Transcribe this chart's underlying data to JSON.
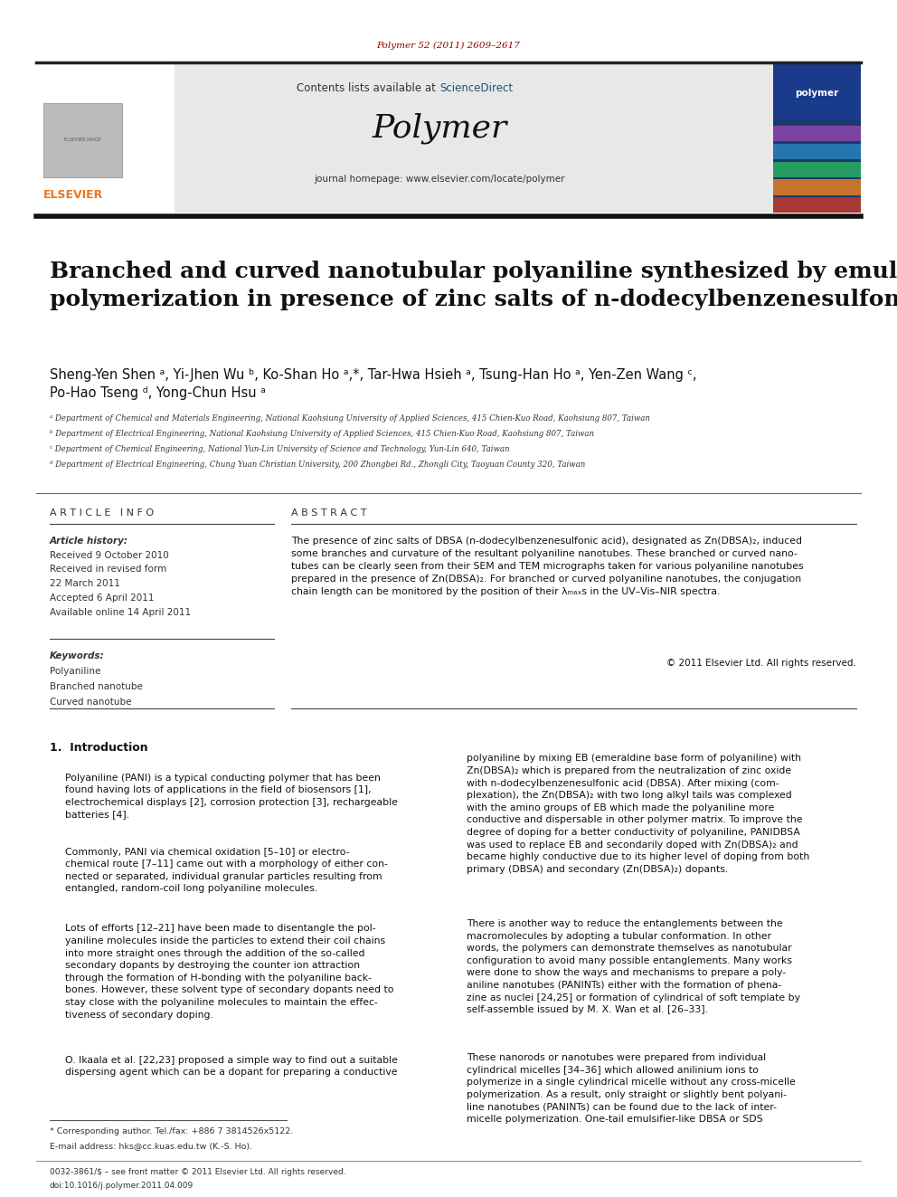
{
  "bg_color": "#ffffff",
  "page_width": 9.92,
  "page_height": 13.23,
  "top_citation": "Polymer 52 (2011) 2609–2617",
  "top_citation_color": "#8B0000",
  "header_bg": "#e8e8e8",
  "header_text1": "Contents lists available at ",
  "header_sciencedirect": "ScienceDirect",
  "header_sciencedirect_color": "#1a5276",
  "header_journal": "Polymer",
  "header_journal_size": 26,
  "header_homepage": "journal homepage: www.elsevier.com/locate/polymer",
  "elsevier_color": "#E87722",
  "article_title": "Branched and curved nanotubular polyaniline synthesized by emulsion\npolymerization in presence of zinc salts of n-dodecylbenzenesulfonic acid",
  "article_title_size": 18,
  "authors_line1": "Sheng-Yen Shen ᵃ, Yi-Jhen Wu ᵇ, Ko-Shan Ho ᵃ,*, Tar-Hwa Hsieh ᵃ, Tsung-Han Ho ᵃ, Yen-Zen Wang ᶜ,",
  "authors_line2": "Po-Hao Tseng ᵈ, Yong-Chun Hsu ᵃ",
  "authors_size": 10.5,
  "affil_a": "ᵃ Department of Chemical and Materials Engineering, National Kaohsiung University of Applied Sciences, 415 Chien-Kuo Road, Kaohsiung 807, Taiwan",
  "affil_b": "ᵇ Department of Electrical Engineering, National Kaohsiung University of Applied Sciences, 415 Chien-Kuo Road, Kaohsiung 807, Taiwan",
  "affil_c": "ᶜ Department of Chemical Engineering, National Yun-Lin University of Science and Technology, Yun-Lin 640, Taiwan",
  "affil_d": "ᵈ Department of Electrical Engineering, Chung Yuan Christian University, 200 Zhongbei Rd., Zhongli City, Taoyuan County 320, Taiwan",
  "affil_size": 6.2,
  "article_info_title": "A R T I C L E   I N F O",
  "abstract_title": "A B S T R A C T",
  "article_history_label": "Article history:",
  "received1": "Received 9 October 2010",
  "received2": "Received in revised form",
  "received2b": "22 March 2011",
  "accepted": "Accepted 6 April 2011",
  "available": "Available online 14 April 2011",
  "keywords_label": "Keywords:",
  "kw1": "Polyaniline",
  "kw2": "Branched nanotube",
  "kw3": "Curved nanotube",
  "abstract_text": "The presence of zinc salts of DBSA (n-dodecylbenzenesulfonic acid), designated as Zn(DBSA)₂, induced\nsome branches and curvature of the resultant polyaniline nanotubes. These branched or curved nano-\ntubes can be clearly seen from their SEM and TEM micrographs taken for various polyaniline nanotubes\nprepared in the presence of Zn(DBSA)₂. For branched or curved polyaniline nanotubes, the conjugation\nchain length can be monitored by the position of their λₘₐₓs in the UV–Vis–NIR spectra.",
  "abstract_copyright": "© 2011 Elsevier Ltd. All rights reserved.",
  "intro_heading": "1.  Introduction",
  "intro_p1": "Polyaniline (PANI) is a typical conducting polymer that has been\nfound having lots of applications in the field of biosensors [1],\nelectrochemical displays [2], corrosion protection [3], rechargeable\nbatteries [4].",
  "intro_p2": "Commonly, PANI via chemical oxidation [5–10] or electro-\nchemical route [7–11] came out with a morphology of either con-\nnected or separated, individual granular particles resulting from\nentangled, random-coil long polyaniline molecules.",
  "intro_p3": "Lots of efforts [12–21] have been made to disentangle the pol-\nyaniline molecules inside the particles to extend their coil chains\ninto more straight ones through the addition of the so-called\nsecondary dopants by destroying the counter ion attraction\nthrough the formation of H-bonding with the polyaniline back-\nbones. However, these solvent type of secondary dopants need to\nstay close with the polyaniline molecules to maintain the effec-\ntiveness of secondary doping.",
  "intro_p4": "O. Ikaala et al. [22,23] proposed a simple way to find out a suitable\ndispersing agent which can be a dopant for preparing a conductive",
  "right_col_p1": "polyaniline by mixing EB (emeraldine base form of polyaniline) with\nZn(DBSA)₂ which is prepared from the neutralization of zinc oxide\nwith n-dodecylbenzenesulfonic acid (DBSA). After mixing (com-\nplexation), the Zn(DBSA)₂ with two long alkyl tails was complexed\nwith the amino groups of EB which made the polyaniline more\nconductive and dispersable in other polymer matrix. To improve the\ndegree of doping for a better conductivity of polyaniline, PANIDBSA\nwas used to replace EB and secondarily doped with Zn(DBSA)₂ and\nbecame highly conductive due to its higher level of doping from both\nprimary (DBSA) and secondary (Zn(DBSA)₂) dopants.",
  "right_col_p2": "There is another way to reduce the entanglements between the\nmacromolecules by adopting a tubular conformation. In other\nwords, the polymers can demonstrate themselves as nanotubular\nconfiguration to avoid many possible entanglements. Many works\nwere done to show the ways and mechanisms to prepare a poly-\naniline nanotubes (PANINTs) either with the formation of phena-\nzine as nuclei [24,25] or formation of cylindrical of soft template by\nself-assemble issued by M. X. Wan et al. [26–33].",
  "right_col_p3": "These nanorods or nanotubes were prepared from individual\ncylindrical micelles [34–36] which allowed anilinium ions to\npolymerize in a single cylindrical micelle without any cross-micelle\npolymerization. As a result, only straight or slightly bent polyani-\nline nanotubes (PANINTs) can be found due to the lack of inter-\nmicelle polymerization. One-tail emulsifier-like DBSA or SDS",
  "footnote_star": "* Corresponding author. Tel./fax: +886 7 3814526x5122.",
  "footnote_email": "E-mail address: hks@cc.kuas.edu.tw (K.-S. Ho).",
  "footer_issn": "0032-3861/$ – see front matter © 2011 Elsevier Ltd. All rights reserved.",
  "footer_doi": "doi:10.1016/j.polymer.2011.04.009"
}
